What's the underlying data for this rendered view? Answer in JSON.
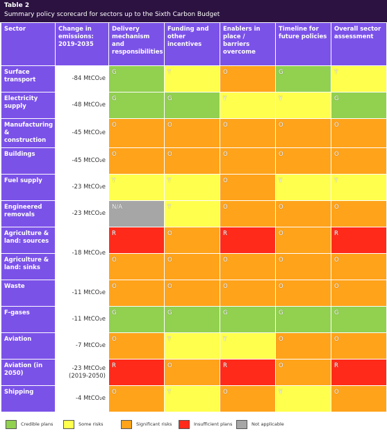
{
  "header": {
    "title": "Table 2",
    "subtitle": "Summary policy scorecard for sectors up to the Sixth Carbon Budget"
  },
  "table": {
    "columns": [
      "Sector",
      "Change in emissions: 2019-2035",
      "Delivery mechanism and responsibilities",
      "Funding and other incentives",
      "Enablers in place / barriers overcome",
      "Timeline for future policies",
      "Overall sector assessment"
    ],
    "rows": [
      {
        "sector": "Surface transport",
        "emissions": "-84 MtCO₂e",
        "ratings": [
          "G",
          "Y",
          "O",
          "G",
          "Y"
        ]
      },
      {
        "sector": "Electricity supply",
        "emissions": "-48 MtCO₂e",
        "ratings": [
          "G",
          "G",
          "Y",
          "Y",
          "G"
        ]
      },
      {
        "sector": "Manufacturing & construction",
        "emissions": "-45 MtCO₂e",
        "ratings": [
          "O",
          "O",
          "O",
          "O",
          "O"
        ]
      },
      {
        "sector": "Buildings",
        "emissions": "-45 MtCO₂e",
        "ratings": [
          "O",
          "O",
          "O",
          "O",
          "O"
        ]
      },
      {
        "sector": "Fuel supply",
        "emissions": "-23 MtCO₂e",
        "ratings": [
          "Y",
          "Y",
          "O",
          "Y",
          "Y"
        ]
      },
      {
        "sector": "Engineered removals",
        "emissions": "-23 MtCO₂e",
        "ratings": [
          "N/A",
          "Y",
          "O",
          "O",
          "O"
        ]
      },
      {
        "sector": "Agriculture & land: sources",
        "emissions": "-18 MtCO₂e",
        "ratings": [
          "R",
          "O",
          "R",
          "O",
          "R"
        ]
      },
      {
        "sector": "Agriculture & land: sinks",
        "emissions": null,
        "ratings": [
          "O",
          "O",
          "O",
          "O",
          "O"
        ]
      },
      {
        "sector": "Waste",
        "emissions": "-11 MtCO₂e",
        "ratings": [
          "O",
          "O",
          "O",
          "O",
          "O"
        ]
      },
      {
        "sector": "F-gases",
        "emissions": "-11 MtCO₂e",
        "ratings": [
          "G",
          "G",
          "G",
          "G",
          "G"
        ]
      },
      {
        "sector": "Aviation",
        "emissions": "-7 MtCO₂e",
        "ratings": [
          "O",
          "Y",
          "Y",
          "O",
          "O"
        ]
      },
      {
        "sector": "Aviation (in 2050)",
        "emissions": "-23 MtCO₂e\n(2019-2050)",
        "ratings": [
          "R",
          "O",
          "R",
          "O",
          "R"
        ]
      },
      {
        "sector": "Shipping",
        "emissions": "-4 MtCO₂e",
        "ratings": [
          "O",
          "Y",
          "O",
          "Y",
          "O"
        ]
      }
    ]
  },
  "legend": [
    {
      "code": "G",
      "label": "Credible plans",
      "color": "#92d050"
    },
    {
      "code": "Y",
      "label": "Some risks",
      "color": "#ffff4d"
    },
    {
      "code": "O",
      "label": "Significant risks",
      "color": "#ffa31a"
    },
    {
      "code": "R",
      "label": "Insufficient plans",
      "color": "#ff2a1a"
    },
    {
      "code": "N/A",
      "label": "Not applicable",
      "color": "#a6a6a6"
    }
  ]
}
